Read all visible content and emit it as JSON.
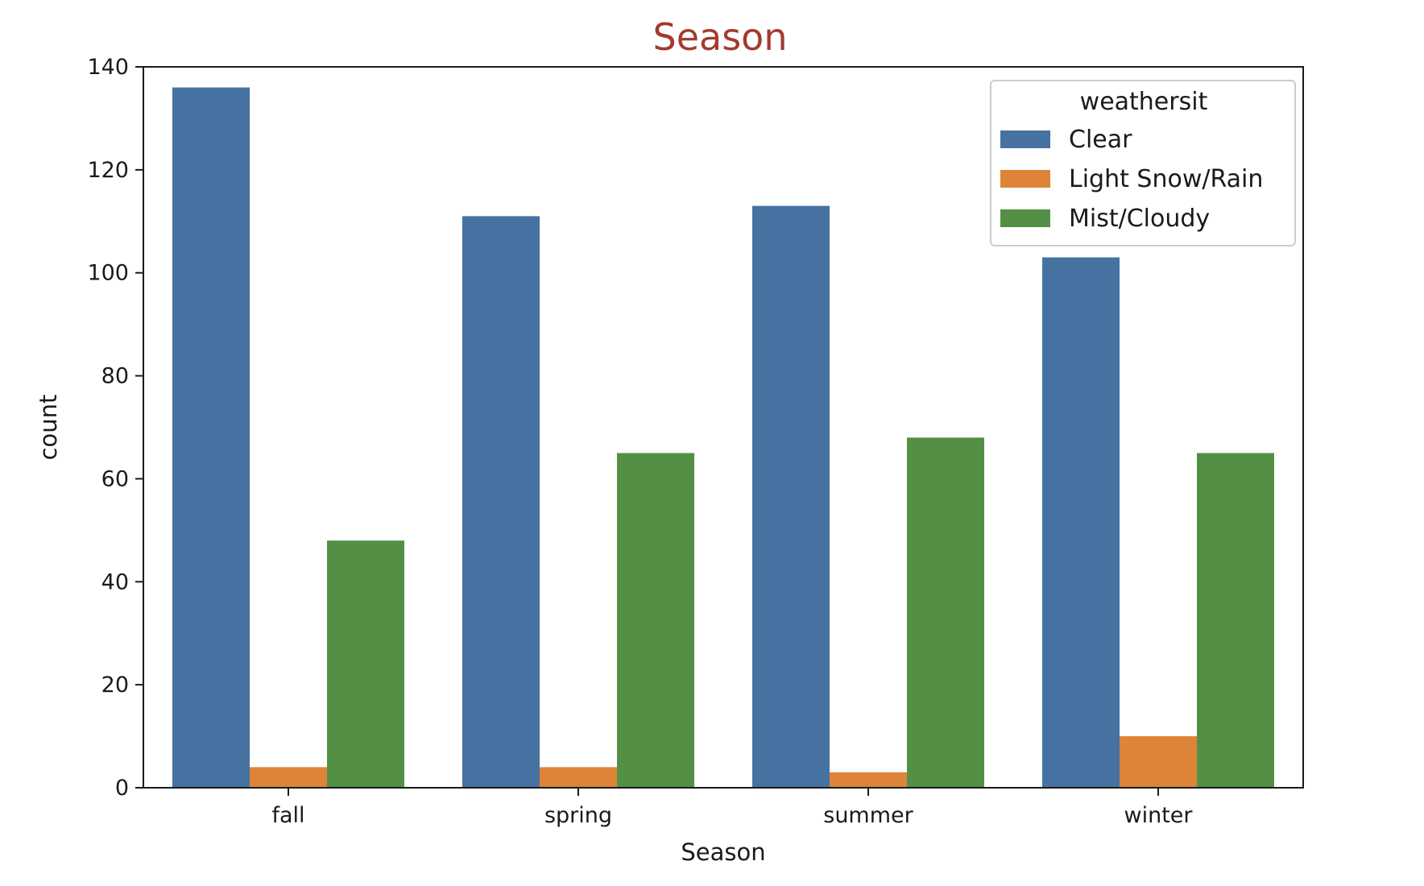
{
  "chart_data": {
    "type": "bar",
    "title": "Season",
    "title_color": "#A33A2E",
    "xlabel": "Season",
    "ylabel": "count",
    "categories": [
      "fall",
      "spring",
      "summer",
      "winter"
    ],
    "series": [
      {
        "name": "Clear",
        "color": "#4572A0",
        "values": [
          136,
          111,
          113,
          103
        ]
      },
      {
        "name": "Light Snow/Rain",
        "color": "#DD8439",
        "values": [
          4,
          4,
          3,
          10
        ]
      },
      {
        "name": "Mist/Cloudy",
        "color": "#539045",
        "values": [
          48,
          65,
          68,
          65
        ]
      }
    ],
    "ylim": [
      0,
      140
    ],
    "yticks": [
      0,
      20,
      40,
      60,
      80,
      100,
      120,
      140
    ],
    "grid": false,
    "legend": {
      "title": "weathersit",
      "placement": "top-right"
    }
  }
}
